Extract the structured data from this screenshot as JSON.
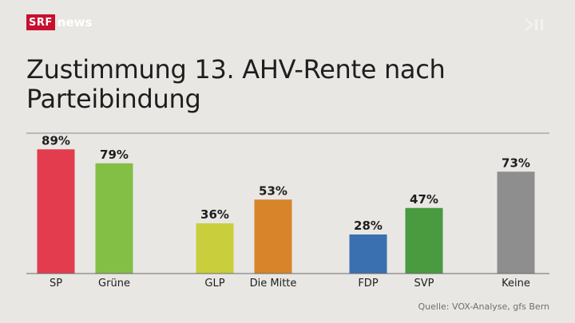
{
  "brand": {
    "logo_box": "SRF",
    "logo_text": "news"
  },
  "colors": {
    "background": "#e9e7e4",
    "axis": "#8a8a8a",
    "brand_red": "#c8102e"
  },
  "source": "Quelle:  VOX-Analyse, gfs Bern",
  "chart_data": {
    "type": "bar",
    "title": "Zustimmung 13. AHV-Rente nach Parteibindung",
    "xlabel": "",
    "ylabel": "",
    "unit": "%",
    "ylim": [
      0,
      100
    ],
    "grid": false,
    "categories": [
      "SP",
      "Grüne",
      "GLP",
      "Die Mitte",
      "FDP",
      "SVP",
      "Keine"
    ],
    "values": [
      89,
      79,
      36,
      53,
      28,
      47,
      73
    ],
    "labels": [
      "89%",
      "79%",
      "36%",
      "53%",
      "28%",
      "47%",
      "73%"
    ],
    "bar_colors": [
      "#e23c4e",
      "#84bf45",
      "#c9cf3c",
      "#d8842a",
      "#3a6fb0",
      "#4a9a3f",
      "#8e8e8e"
    ]
  }
}
